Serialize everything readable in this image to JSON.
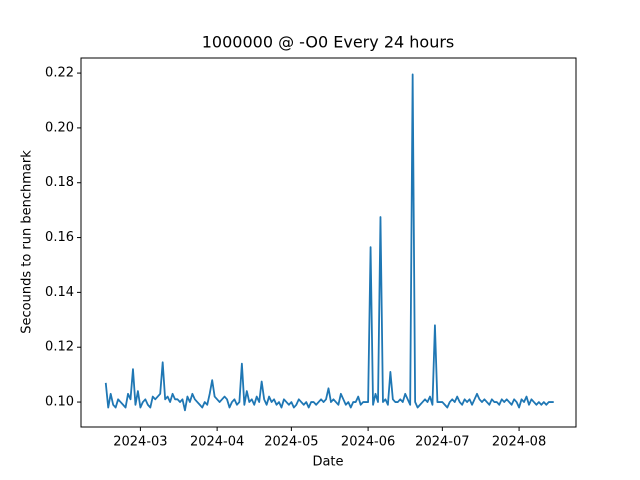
{
  "chart_data": {
    "type": "line",
    "title": "1000000 @ -O0 Every 24 hours",
    "x_label": "Date",
    "y_label": "Secounds to run benchmark",
    "color": "#1f77b4",
    "x": [
      "2024-02-16",
      "2024-02-17",
      "2024-02-18",
      "2024-02-19",
      "2024-02-20",
      "2024-02-21",
      "2024-02-22",
      "2024-02-23",
      "2024-02-24",
      "2024-02-25",
      "2024-02-26",
      "2024-02-27",
      "2024-02-28",
      "2024-02-29",
      "2024-03-01",
      "2024-03-02",
      "2024-03-03",
      "2024-03-04",
      "2024-03-05",
      "2024-03-06",
      "2024-03-07",
      "2024-03-08",
      "2024-03-09",
      "2024-03-10",
      "2024-03-11",
      "2024-03-12",
      "2024-03-13",
      "2024-03-14",
      "2024-03-15",
      "2024-03-16",
      "2024-03-17",
      "2024-03-18",
      "2024-03-19",
      "2024-03-20",
      "2024-03-21",
      "2024-03-22",
      "2024-03-23",
      "2024-03-24",
      "2024-03-25",
      "2024-03-26",
      "2024-03-27",
      "2024-03-28",
      "2024-03-29",
      "2024-03-30",
      "2024-03-31",
      "2024-04-01",
      "2024-04-02",
      "2024-04-03",
      "2024-04-04",
      "2024-04-05",
      "2024-04-06",
      "2024-04-07",
      "2024-04-08",
      "2024-04-09",
      "2024-04-10",
      "2024-04-11",
      "2024-04-12",
      "2024-04-13",
      "2024-04-14",
      "2024-04-15",
      "2024-04-16",
      "2024-04-17",
      "2024-04-18",
      "2024-04-19",
      "2024-04-20",
      "2024-04-21",
      "2024-04-22",
      "2024-04-23",
      "2024-04-24",
      "2024-04-25",
      "2024-04-26",
      "2024-04-27",
      "2024-04-28",
      "2024-04-29",
      "2024-04-30",
      "2024-05-01",
      "2024-05-02",
      "2024-05-03",
      "2024-05-04",
      "2024-05-05",
      "2024-05-06",
      "2024-05-07",
      "2024-05-08",
      "2024-05-09",
      "2024-05-10",
      "2024-05-11",
      "2024-05-12",
      "2024-05-13",
      "2024-05-14",
      "2024-05-15",
      "2024-05-16",
      "2024-05-17",
      "2024-05-18",
      "2024-05-19",
      "2024-05-20",
      "2024-05-21",
      "2024-05-22",
      "2024-05-23",
      "2024-05-24",
      "2024-05-25",
      "2024-05-26",
      "2024-05-27",
      "2024-05-28",
      "2024-05-29",
      "2024-05-30",
      "2024-05-31",
      "2024-06-01",
      "2024-06-02",
      "2024-06-03",
      "2024-06-04",
      "2024-06-05",
      "2024-06-06",
      "2024-06-07",
      "2024-06-08",
      "2024-06-09",
      "2024-06-10",
      "2024-06-11",
      "2024-06-12",
      "2024-06-13",
      "2024-06-14",
      "2024-06-15",
      "2024-06-16",
      "2024-06-17",
      "2024-06-18",
      "2024-06-19",
      "2024-06-20",
      "2024-06-21",
      "2024-06-22",
      "2024-06-23",
      "2024-06-24",
      "2024-06-25",
      "2024-06-26",
      "2024-06-27",
      "2024-06-28",
      "2024-06-29",
      "2024-06-30",
      "2024-07-01",
      "2024-07-02",
      "2024-07-03",
      "2024-07-04",
      "2024-07-05",
      "2024-07-06",
      "2024-07-07",
      "2024-07-08",
      "2024-07-09",
      "2024-07-10",
      "2024-07-11",
      "2024-07-12",
      "2024-07-13",
      "2024-07-14",
      "2024-07-15",
      "2024-07-16",
      "2024-07-17",
      "2024-07-18",
      "2024-07-19",
      "2024-07-20",
      "2024-07-21",
      "2024-07-22",
      "2024-07-23",
      "2024-07-24",
      "2024-07-25",
      "2024-07-26",
      "2024-07-27",
      "2024-07-28",
      "2024-07-29",
      "2024-07-30",
      "2024-07-31",
      "2024-08-01",
      "2024-08-02",
      "2024-08-03",
      "2024-08-04",
      "2024-08-05",
      "2024-08-06",
      "2024-08-07",
      "2024-08-08",
      "2024-08-09",
      "2024-08-10",
      "2024-08-11",
      "2024-08-12",
      "2024-08-13",
      "2024-08-14",
      "2024-08-15"
    ],
    "values": [
      0.107,
      0.098,
      0.103,
      0.099,
      0.098,
      0.101,
      0.1,
      0.099,
      0.098,
      0.103,
      0.101,
      0.112,
      0.099,
      0.104,
      0.098,
      0.1,
      0.101,
      0.099,
      0.098,
      0.102,
      0.101,
      0.102,
      0.103,
      0.1145,
      0.101,
      0.102,
      0.1,
      0.103,
      0.101,
      0.101,
      0.1,
      0.101,
      0.097,
      0.102,
      0.1,
      0.103,
      0.101,
      0.1,
      0.099,
      0.098,
      0.1,
      0.099,
      0.103,
      0.108,
      0.102,
      0.101,
      0.1,
      0.101,
      0.102,
      0.101,
      0.098,
      0.1,
      0.101,
      0.099,
      0.1,
      0.114,
      0.099,
      0.104,
      0.1,
      0.101,
      0.099,
      0.102,
      0.1,
      0.1075,
      0.101,
      0.099,
      0.102,
      0.1,
      0.101,
      0.099,
      0.1,
      0.098,
      0.101,
      0.1,
      0.099,
      0.1,
      0.098,
      0.099,
      0.101,
      0.1,
      0.099,
      0.1,
      0.098,
      0.1,
      0.1,
      0.099,
      0.1,
      0.101,
      0.1,
      0.101,
      0.105,
      0.1,
      0.101,
      0.1,
      0.099,
      0.103,
      0.101,
      0.099,
      0.1,
      0.098,
      0.1,
      0.1,
      0.102,
      0.099,
      0.1,
      0.1,
      0.1,
      0.1565,
      0.099,
      0.103,
      0.1,
      0.1675,
      0.1,
      0.101,
      0.099,
      0.111,
      0.101,
      0.1,
      0.1,
      0.101,
      0.1,
      0.103,
      0.101,
      0.099,
      0.2195,
      0.1,
      0.098,
      0.099,
      0.1,
      0.101,
      0.1,
      0.102,
      0.099,
      0.128,
      0.1,
      0.1,
      0.1,
      0.099,
      0.098,
      0.1,
      0.101,
      0.1,
      0.102,
      0.1,
      0.099,
      0.101,
      0.1,
      0.101,
      0.099,
      0.101,
      0.103,
      0.101,
      0.1,
      0.101,
      0.1,
      0.099,
      0.101,
      0.1,
      0.1,
      0.099,
      0.101,
      0.1,
      0.101,
      0.1,
      0.099,
      0.101,
      0.1,
      0.098,
      0.101,
      0.1,
      0.102,
      0.099,
      0.101,
      0.1,
      0.099,
      0.1,
      0.099,
      0.1,
      0.099,
      0.1,
      0.1,
      0.1
    ],
    "xlim": [
      "2024-02-06",
      "2024-08-24"
    ],
    "xticks": [
      {
        "value": "2024-03-01",
        "label": "2024-03"
      },
      {
        "value": "2024-04-01",
        "label": "2024-04"
      },
      {
        "value": "2024-05-01",
        "label": "2024-05"
      },
      {
        "value": "2024-06-01",
        "label": "2024-06"
      },
      {
        "value": "2024-07-01",
        "label": "2024-07"
      },
      {
        "value": "2024-08-01",
        "label": "2024-08"
      }
    ],
    "ylim": [
      0.0909,
      0.2255
    ],
    "yticks": [
      {
        "value": 0.1,
        "label": "0.10"
      },
      {
        "value": 0.12,
        "label": "0.12"
      },
      {
        "value": 0.14,
        "label": "0.14"
      },
      {
        "value": 0.16,
        "label": "0.16"
      },
      {
        "value": 0.18,
        "label": "0.18"
      },
      {
        "value": 0.2,
        "label": "0.20"
      },
      {
        "value": 0.22,
        "label": "0.22"
      }
    ]
  }
}
